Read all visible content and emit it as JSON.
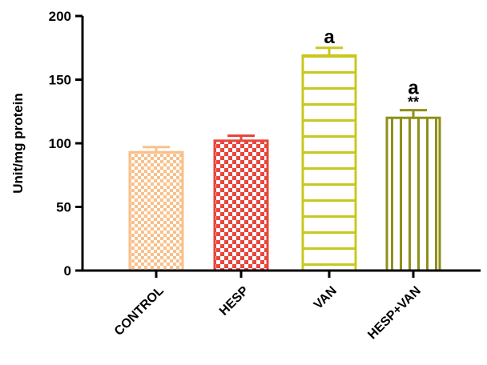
{
  "chart_data": {
    "type": "bar",
    "title": "",
    "xlabel": "",
    "ylabel": "Unit/mg protein",
    "ylim": [
      0,
      200
    ],
    "yticks": [
      0,
      50,
      100,
      150,
      200
    ],
    "grid": false,
    "categories": [
      "CONTROL",
      "HESP",
      "VAN",
      "HESP+VAN"
    ],
    "values": [
      93,
      102,
      169,
      120
    ],
    "errors": [
      4,
      4,
      6,
      6
    ],
    "colors": [
      "#F9C08A",
      "#E8453C",
      "#C8C81E",
      "#8F8F1A"
    ],
    "patterns": [
      "checker-fine",
      "checker",
      "horizontal-lines",
      "vertical-lines"
    ],
    "annotations": [
      {
        "category": "VAN",
        "text": "a"
      },
      {
        "category": "HESP+VAN",
        "text": "a"
      },
      {
        "category": "HESP+VAN",
        "text": "**"
      }
    ]
  }
}
